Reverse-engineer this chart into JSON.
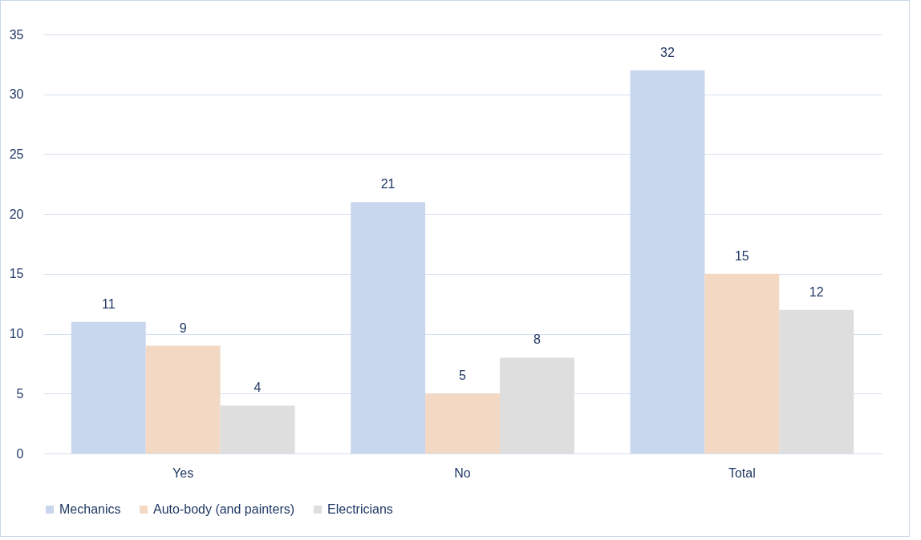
{
  "chart_data": {
    "type": "bar",
    "categories": [
      "Yes",
      "No",
      "Total"
    ],
    "series": [
      {
        "name": "Mechanics",
        "color": "#c9d7ee",
        "values": [
          11,
          21,
          32
        ]
      },
      {
        "name": "Auto-body (and painters)",
        "color": "#f3d9c4",
        "values": [
          9,
          5,
          15
        ]
      },
      {
        "name": "Electricians",
        "color": "#dedede",
        "values": [
          4,
          8,
          12
        ]
      }
    ],
    "ylim": [
      0,
      35
    ],
    "yticks": [
      0,
      5,
      10,
      15,
      20,
      25,
      30,
      35
    ],
    "grid": "y",
    "legend": "bottom",
    "data_labels": true
  }
}
